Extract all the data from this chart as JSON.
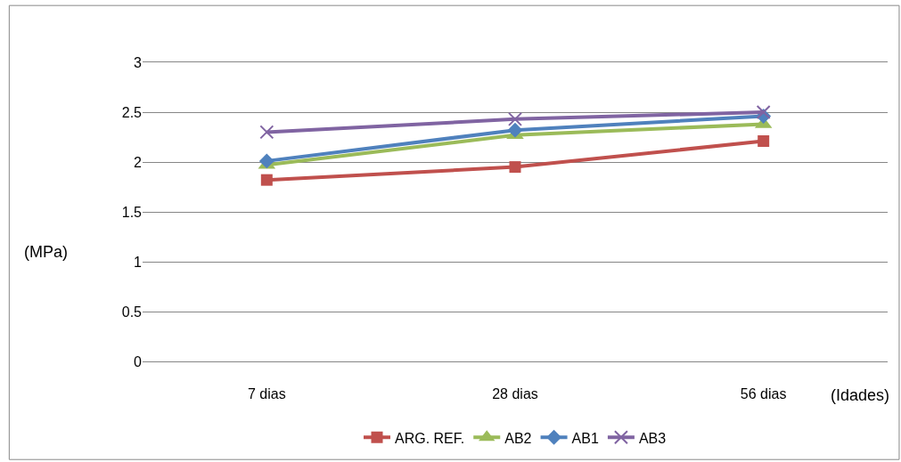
{
  "chart_data": {
    "type": "line",
    "xlabel": "(Idades)",
    "ylabel": "(MPa)",
    "categories": [
      "7 dias",
      "28 dias",
      "56 dias"
    ],
    "series": [
      {
        "name": "ARG. REF.",
        "color": "#c0504d",
        "marker": "square",
        "values": [
          1.82,
          1.95,
          2.21
        ]
      },
      {
        "name": "AB2",
        "color": "#9bbb59",
        "marker": "triangle",
        "values": [
          1.97,
          2.27,
          2.38
        ]
      },
      {
        "name": "AB1",
        "color": "#4f81bd",
        "marker": "diamond",
        "values": [
          2.01,
          2.32,
          2.46
        ]
      },
      {
        "name": "AB3",
        "color": "#8064a2",
        "marker": "cross",
        "values": [
          2.3,
          2.43,
          2.5
        ]
      }
    ],
    "ylim": [
      0,
      3
    ],
    "yticks": [
      0,
      0.5,
      1,
      1.5,
      2,
      2.5,
      3
    ],
    "grid": "y",
    "legend": "bottom",
    "line_style": "solid"
  }
}
